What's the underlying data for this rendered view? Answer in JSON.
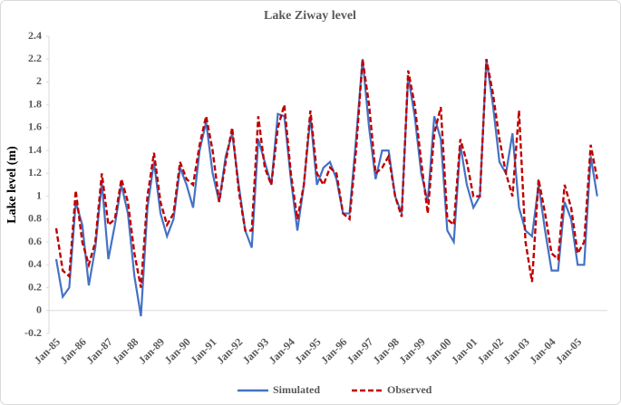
{
  "chart_data": {
    "type": "line",
    "title": "Lake Ziway level",
    "y_label": "Lake level (m)",
    "categories": [
      "Jan-85",
      null,
      null,
      null,
      "Jan-86",
      null,
      null,
      null,
      "Jan-87",
      null,
      null,
      null,
      "Jan-88",
      null,
      null,
      null,
      "Jan-89",
      null,
      null,
      null,
      "Jan-90",
      null,
      null,
      null,
      "Jan-91",
      null,
      null,
      null,
      "Jan-92",
      null,
      null,
      null,
      "Jan-93",
      null,
      null,
      null,
      "Jan-94",
      null,
      null,
      null,
      "Jan-95",
      null,
      null,
      null,
      "Jan-96",
      null,
      null,
      null,
      "Jan-97",
      null,
      null,
      null,
      "Jan-98",
      null,
      null,
      null,
      "Jan-99",
      null,
      null,
      null,
      "Jan-00",
      null,
      null,
      null,
      "Jan-01",
      null,
      null,
      null,
      "Jan-02",
      null,
      null,
      null,
      "Jan-03",
      null,
      null,
      null,
      "Jan-04",
      null,
      null,
      null,
      "Jan-05",
      null,
      null,
      null
    ],
    "series": [
      {
        "name": "Simulated",
        "color": "#4472c4",
        "dashed": false,
        "values": [
          0.45,
          0.12,
          0.2,
          0.95,
          0.75,
          0.22,
          0.55,
          1.12,
          0.45,
          0.75,
          1.1,
          0.85,
          0.3,
          -0.05,
          0.9,
          1.3,
          0.85,
          0.65,
          0.8,
          1.25,
          1.1,
          0.9,
          1.4,
          1.65,
          1.2,
          0.95,
          1.35,
          1.55,
          1.1,
          0.7,
          0.55,
          1.5,
          1.3,
          1.1,
          1.72,
          1.7,
          1.15,
          0.7,
          1.1,
          1.7,
          1.1,
          1.25,
          1.3,
          1.15,
          0.85,
          0.85,
          1.5,
          2.2,
          1.6,
          1.15,
          1.4,
          1.4,
          1.0,
          0.85,
          2.05,
          1.7,
          1.2,
          0.95,
          1.7,
          1.5,
          0.7,
          0.6,
          1.45,
          1.1,
          0.9,
          1.0,
          2.2,
          1.8,
          1.3,
          1.2,
          1.55,
          0.9,
          0.7,
          0.65,
          1.1,
          0.7,
          0.35,
          0.35,
          0.95,
          0.8,
          0.4,
          0.4,
          1.35,
          1.0
        ]
      },
      {
        "name": "Observed",
        "color": "#c00000",
        "dashed": true,
        "values": [
          0.72,
          0.35,
          0.3,
          1.05,
          0.6,
          0.4,
          0.6,
          1.2,
          0.75,
          0.8,
          1.15,
          0.95,
          0.5,
          0.2,
          1.0,
          1.38,
          0.95,
          0.75,
          0.85,
          1.3,
          1.15,
          1.1,
          1.45,
          1.7,
          1.4,
          0.95,
          1.3,
          1.6,
          1.05,
          0.7,
          0.7,
          1.7,
          1.25,
          1.1,
          1.6,
          1.8,
          1.2,
          0.8,
          1.1,
          1.75,
          1.2,
          1.1,
          1.25,
          1.2,
          0.85,
          0.8,
          1.4,
          2.2,
          1.8,
          1.2,
          1.25,
          1.35,
          1.0,
          0.82,
          2.1,
          1.8,
          1.3,
          0.85,
          1.55,
          1.78,
          0.8,
          0.75,
          1.5,
          1.3,
          1.0,
          1.0,
          2.2,
          1.9,
          1.5,
          1.2,
          1.0,
          1.75,
          0.6,
          0.25,
          1.15,
          0.85,
          0.5,
          0.45,
          1.1,
          0.9,
          0.5,
          0.6,
          1.45,
          1.15
        ]
      }
    ],
    "ylim": [
      -0.2,
      2.4
    ],
    "yticks": [
      -0.2,
      0,
      0.2,
      0.4,
      0.6,
      0.8,
      1,
      1.2,
      1.4,
      1.6,
      1.8,
      2,
      2.2,
      2.4
    ],
    "grid": false,
    "legend": "bottom"
  }
}
